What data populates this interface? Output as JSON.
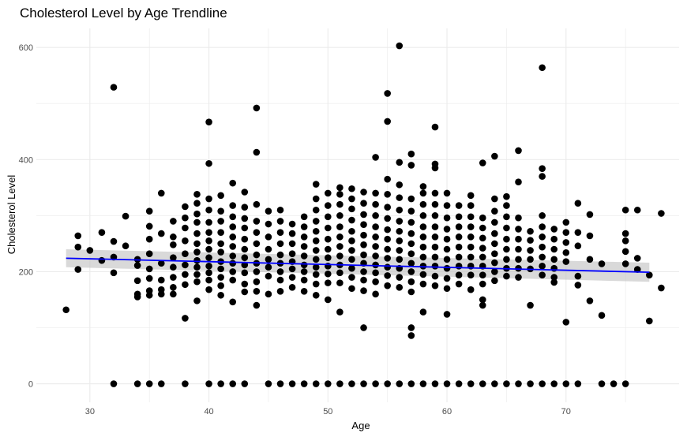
{
  "chart_data": {
    "type": "scatter",
    "title": "Cholesterol Level by Age Trendline",
    "xlabel": "Age",
    "ylabel": "Cholesterol Level",
    "xlim": [
      25.5,
      79.5
    ],
    "ylim": [
      -33,
      634
    ],
    "x_ticks": [
      30,
      40,
      50,
      60,
      70
    ],
    "y_ticks": [
      0,
      200,
      400,
      600
    ],
    "grid": true,
    "legend": "none",
    "colors": {
      "points": "#000000",
      "trend": "#0000ff",
      "band": "#bfbfbf",
      "grid": "#ebebeb"
    },
    "points": [
      [
        28,
        132
      ],
      [
        29,
        264
      ],
      [
        29,
        244
      ],
      [
        29,
        204
      ],
      [
        30,
        238
      ],
      [
        31,
        270
      ],
      [
        31,
        220
      ],
      [
        32,
        529
      ],
      [
        32,
        254
      ],
      [
        32,
        226
      ],
      [
        32,
        198
      ],
      [
        32,
        0
      ],
      [
        33,
        299
      ],
      [
        33,
        246
      ],
      [
        34,
        222
      ],
      [
        34,
        211
      ],
      [
        34,
        184
      ],
      [
        34,
        160
      ],
      [
        34,
        155
      ],
      [
        34,
        0
      ],
      [
        35,
        308
      ],
      [
        35,
        281
      ],
      [
        35,
        258
      ],
      [
        35,
        232
      ],
      [
        35,
        205
      ],
      [
        35,
        188
      ],
      [
        35,
        166
      ],
      [
        35,
        158
      ],
      [
        35,
        0
      ],
      [
        36,
        340
      ],
      [
        36,
        268
      ],
      [
        36,
        215
      ],
      [
        36,
        185
      ],
      [
        36,
        168
      ],
      [
        36,
        160
      ],
      [
        36,
        0
      ],
      [
        37,
        290
      ],
      [
        37,
        262
      ],
      [
        37,
        248
      ],
      [
        37,
        225
      ],
      [
        37,
        208
      ],
      [
        37,
        190
      ],
      [
        37,
        172
      ],
      [
        37,
        160
      ],
      [
        38,
        316
      ],
      [
        38,
        296
      ],
      [
        38,
        278
      ],
      [
        38,
        255
      ],
      [
        38,
        232
      ],
      [
        38,
        212
      ],
      [
        38,
        195
      ],
      [
        38,
        177
      ],
      [
        38,
        117
      ],
      [
        38,
        0
      ],
      [
        39,
        338
      ],
      [
        39,
        322
      ],
      [
        39,
        303
      ],
      [
        39,
        288
      ],
      [
        39,
        268
      ],
      [
        39,
        250
      ],
      [
        39,
        235
      ],
      [
        39,
        220
      ],
      [
        39,
        208
      ],
      [
        39,
        195
      ],
      [
        39,
        182
      ],
      [
        39,
        148
      ],
      [
        40,
        467
      ],
      [
        40,
        393
      ],
      [
        40,
        330
      ],
      [
        40,
        310
      ],
      [
        40,
        288
      ],
      [
        40,
        270
      ],
      [
        40,
        255
      ],
      [
        40,
        240
      ],
      [
        40,
        225
      ],
      [
        40,
        210
      ],
      [
        40,
        198
      ],
      [
        40,
        185
      ],
      [
        40,
        168
      ],
      [
        40,
        0
      ],
      [
        41,
        336
      ],
      [
        41,
        308
      ],
      [
        41,
        290
      ],
      [
        41,
        270
      ],
      [
        41,
        250
      ],
      [
        41,
        235
      ],
      [
        41,
        218
      ],
      [
        41,
        205
      ],
      [
        41,
        190
      ],
      [
        41,
        175
      ],
      [
        41,
        158
      ],
      [
        41,
        0
      ],
      [
        42,
        358
      ],
      [
        42,
        318
      ],
      [
        42,
        298
      ],
      [
        42,
        280
      ],
      [
        42,
        262
      ],
      [
        42,
        245
      ],
      [
        42,
        228
      ],
      [
        42,
        215
      ],
      [
        42,
        200
      ],
      [
        42,
        185
      ],
      [
        42,
        146
      ],
      [
        42,
        0
      ],
      [
        43,
        342
      ],
      [
        43,
        315
      ],
      [
        43,
        295
      ],
      [
        43,
        278
      ],
      [
        43,
        258
      ],
      [
        43,
        240
      ],
      [
        43,
        225
      ],
      [
        43,
        212
      ],
      [
        43,
        198
      ],
      [
        43,
        178
      ],
      [
        43,
        164
      ],
      [
        43,
        0
      ],
      [
        44,
        492
      ],
      [
        44,
        413
      ],
      [
        44,
        320
      ],
      [
        44,
        290
      ],
      [
        44,
        270
      ],
      [
        44,
        250
      ],
      [
        44,
        230
      ],
      [
        44,
        215
      ],
      [
        44,
        200
      ],
      [
        44,
        182
      ],
      [
        44,
        165
      ],
      [
        44,
        140
      ],
      [
        45,
        308
      ],
      [
        45,
        285
      ],
      [
        45,
        262
      ],
      [
        45,
        240
      ],
      [
        45,
        222
      ],
      [
        45,
        208
      ],
      [
        45,
        192
      ],
      [
        45,
        160
      ],
      [
        45,
        0
      ],
      [
        46,
        310
      ],
      [
        46,
        290
      ],
      [
        46,
        270
      ],
      [
        46,
        250
      ],
      [
        46,
        230
      ],
      [
        46,
        215
      ],
      [
        46,
        200
      ],
      [
        46,
        185
      ],
      [
        46,
        165
      ],
      [
        46,
        0
      ],
      [
        47,
        285
      ],
      [
        47,
        268
      ],
      [
        47,
        250
      ],
      [
        47,
        232
      ],
      [
        47,
        218
      ],
      [
        47,
        205
      ],
      [
        47,
        190
      ],
      [
        47,
        172
      ],
      [
        47,
        0
      ],
      [
        48,
        298
      ],
      [
        48,
        280
      ],
      [
        48,
        262
      ],
      [
        48,
        245
      ],
      [
        48,
        228
      ],
      [
        48,
        212
      ],
      [
        48,
        200
      ],
      [
        48,
        185
      ],
      [
        48,
        165
      ],
      [
        48,
        0
      ],
      [
        49,
        356
      ],
      [
        49,
        330
      ],
      [
        49,
        310
      ],
      [
        49,
        290
      ],
      [
        49,
        272
      ],
      [
        49,
        255
      ],
      [
        49,
        238
      ],
      [
        49,
        222
      ],
      [
        49,
        208
      ],
      [
        49,
        195
      ],
      [
        49,
        178
      ],
      [
        49,
        158
      ],
      [
        49,
        0
      ],
      [
        50,
        340
      ],
      [
        50,
        318
      ],
      [
        50,
        298
      ],
      [
        50,
        278
      ],
      [
        50,
        258
      ],
      [
        50,
        240
      ],
      [
        50,
        225
      ],
      [
        50,
        210
      ],
      [
        50,
        196
      ],
      [
        50,
        180
      ],
      [
        50,
        150
      ],
      [
        50,
        0
      ],
      [
        51,
        350
      ],
      [
        51,
        338
      ],
      [
        51,
        320
      ],
      [
        51,
        300
      ],
      [
        51,
        280
      ],
      [
        51,
        262
      ],
      [
        51,
        245
      ],
      [
        51,
        228
      ],
      [
        51,
        212
      ],
      [
        51,
        198
      ],
      [
        51,
        180
      ],
      [
        51,
        128
      ],
      [
        51,
        0
      ],
      [
        52,
        348
      ],
      [
        52,
        330
      ],
      [
        52,
        312
      ],
      [
        52,
        292
      ],
      [
        52,
        272
      ],
      [
        52,
        255
      ],
      [
        52,
        238
      ],
      [
        52,
        222
      ],
      [
        52,
        206
      ],
      [
        52,
        190
      ],
      [
        52,
        170
      ],
      [
        52,
        0
      ],
      [
        53,
        342
      ],
      [
        53,
        322
      ],
      [
        53,
        302
      ],
      [
        53,
        284
      ],
      [
        53,
        265
      ],
      [
        53,
        248
      ],
      [
        53,
        230
      ],
      [
        53,
        215
      ],
      [
        53,
        200
      ],
      [
        53,
        185
      ],
      [
        53,
        166
      ],
      [
        53,
        100
      ],
      [
        53,
        0
      ],
      [
        54,
        404
      ],
      [
        54,
        340
      ],
      [
        54,
        320
      ],
      [
        54,
        300
      ],
      [
        54,
        280
      ],
      [
        54,
        262
      ],
      [
        54,
        245
      ],
      [
        54,
        228
      ],
      [
        54,
        212
      ],
      [
        54,
        198
      ],
      [
        54,
        182
      ],
      [
        54,
        160
      ],
      [
        54,
        0
      ],
      [
        55,
        518
      ],
      [
        55,
        468
      ],
      [
        55,
        365
      ],
      [
        55,
        338
      ],
      [
        55,
        315
      ],
      [
        55,
        295
      ],
      [
        55,
        275
      ],
      [
        55,
        258
      ],
      [
        55,
        240
      ],
      [
        55,
        224
      ],
      [
        55,
        208
      ],
      [
        55,
        193
      ],
      [
        55,
        175
      ],
      [
        55,
        0
      ],
      [
        56,
        603
      ],
      [
        56,
        395
      ],
      [
        56,
        355
      ],
      [
        56,
        332
      ],
      [
        56,
        310
      ],
      [
        56,
        290
      ],
      [
        56,
        272
      ],
      [
        56,
        255
      ],
      [
        56,
        238
      ],
      [
        56,
        222
      ],
      [
        56,
        206
      ],
      [
        56,
        190
      ],
      [
        56,
        172
      ],
      [
        56,
        0
      ],
      [
        57,
        410
      ],
      [
        57,
        390
      ],
      [
        57,
        330
      ],
      [
        57,
        308
      ],
      [
        57,
        288
      ],
      [
        57,
        268
      ],
      [
        57,
        250
      ],
      [
        57,
        232
      ],
      [
        57,
        215
      ],
      [
        57,
        200
      ],
      [
        57,
        182
      ],
      [
        57,
        164
      ],
      [
        57,
        100
      ],
      [
        57,
        86
      ],
      [
        57,
        0
      ],
      [
        58,
        352
      ],
      [
        58,
        340
      ],
      [
        58,
        320
      ],
      [
        58,
        300
      ],
      [
        58,
        280
      ],
      [
        58,
        262
      ],
      [
        58,
        244
      ],
      [
        58,
        226
      ],
      [
        58,
        210
      ],
      [
        58,
        195
      ],
      [
        58,
        178
      ],
      [
        58,
        128
      ],
      [
        58,
        0
      ],
      [
        59,
        458
      ],
      [
        59,
        392
      ],
      [
        59,
        385
      ],
      [
        59,
        340
      ],
      [
        59,
        320
      ],
      [
        59,
        300
      ],
      [
        59,
        280
      ],
      [
        59,
        262
      ],
      [
        59,
        244
      ],
      [
        59,
        226
      ],
      [
        59,
        210
      ],
      [
        59,
        192
      ],
      [
        59,
        175
      ],
      [
        59,
        0
      ],
      [
        60,
        340
      ],
      [
        60,
        318
      ],
      [
        60,
        296
      ],
      [
        60,
        276
      ],
      [
        60,
        258
      ],
      [
        60,
        240
      ],
      [
        60,
        222
      ],
      [
        60,
        206
      ],
      [
        60,
        188
      ],
      [
        60,
        170
      ],
      [
        60,
        124
      ],
      [
        60,
        0
      ],
      [
        61,
        318
      ],
      [
        61,
        298
      ],
      [
        61,
        280
      ],
      [
        61,
        262
      ],
      [
        61,
        244
      ],
      [
        61,
        226
      ],
      [
        61,
        210
      ],
      [
        61,
        194
      ],
      [
        61,
        178
      ],
      [
        61,
        0
      ],
      [
        62,
        336
      ],
      [
        62,
        318
      ],
      [
        62,
        298
      ],
      [
        62,
        280
      ],
      [
        62,
        262
      ],
      [
        62,
        244
      ],
      [
        62,
        226
      ],
      [
        62,
        210
      ],
      [
        62,
        194
      ],
      [
        62,
        168
      ],
      [
        62,
        0
      ],
      [
        63,
        394
      ],
      [
        63,
        296
      ],
      [
        63,
        278
      ],
      [
        63,
        260
      ],
      [
        63,
        242
      ],
      [
        63,
        226
      ],
      [
        63,
        210
      ],
      [
        63,
        194
      ],
      [
        63,
        178
      ],
      [
        63,
        150
      ],
      [
        63,
        140
      ],
      [
        63,
        0
      ],
      [
        64,
        406
      ],
      [
        64,
        330
      ],
      [
        64,
        308
      ],
      [
        64,
        288
      ],
      [
        64,
        268
      ],
      [
        64,
        250
      ],
      [
        64,
        232
      ],
      [
        64,
        216
      ],
      [
        64,
        200
      ],
      [
        64,
        184
      ],
      [
        64,
        0
      ],
      [
        65,
        334
      ],
      [
        65,
        318
      ],
      [
        65,
        298
      ],
      [
        65,
        278
      ],
      [
        65,
        258
      ],
      [
        65,
        240
      ],
      [
        65,
        222
      ],
      [
        65,
        206
      ],
      [
        65,
        192
      ],
      [
        65,
        0
      ],
      [
        66,
        416
      ],
      [
        66,
        360
      ],
      [
        66,
        296
      ],
      [
        66,
        276
      ],
      [
        66,
        258
      ],
      [
        66,
        240
      ],
      [
        66,
        222
      ],
      [
        66,
        206
      ],
      [
        66,
        190
      ],
      [
        66,
        0
      ],
      [
        67,
        272
      ],
      [
        67,
        256
      ],
      [
        67,
        238
      ],
      [
        67,
        222
      ],
      [
        67,
        205
      ],
      [
        67,
        140
      ],
      [
        67,
        0
      ],
      [
        68,
        564
      ],
      [
        68,
        384
      ],
      [
        68,
        370
      ],
      [
        68,
        300
      ],
      [
        68,
        280
      ],
      [
        68,
        262
      ],
      [
        68,
        244
      ],
      [
        68,
        226
      ],
      [
        68,
        210
      ],
      [
        68,
        194
      ],
      [
        68,
        0
      ],
      [
        69,
        276
      ],
      [
        69,
        258
      ],
      [
        69,
        240
      ],
      [
        69,
        222
      ],
      [
        69,
        206
      ],
      [
        69,
        190
      ],
      [
        69,
        181
      ],
      [
        69,
        0
      ],
      [
        70,
        288
      ],
      [
        70,
        270
      ],
      [
        70,
        252
      ],
      [
        70,
        234
      ],
      [
        70,
        218
      ],
      [
        70,
        110
      ],
      [
        70,
        0
      ],
      [
        71,
        322
      ],
      [
        71,
        270
      ],
      [
        71,
        246
      ],
      [
        71,
        192
      ],
      [
        71,
        176
      ],
      [
        71,
        0
      ],
      [
        72,
        302
      ],
      [
        72,
        264
      ],
      [
        72,
        222
      ],
      [
        72,
        148
      ],
      [
        73,
        214
      ],
      [
        73,
        122
      ],
      [
        73,
        0
      ],
      [
        74,
        0
      ],
      [
        75,
        310
      ],
      [
        75,
        268
      ],
      [
        75,
        255
      ],
      [
        75,
        236
      ],
      [
        75,
        214
      ],
      [
        75,
        0
      ],
      [
        76,
        310
      ],
      [
        76,
        224
      ],
      [
        76,
        204
      ],
      [
        77,
        194
      ],
      [
        77,
        112
      ],
      [
        78,
        304
      ],
      [
        78,
        171
      ]
    ],
    "trendline": {
      "method": "linear",
      "x": [
        28,
        77
      ],
      "y": [
        224,
        199
      ],
      "band_halfwidth": [
        16,
        17
      ]
    }
  }
}
